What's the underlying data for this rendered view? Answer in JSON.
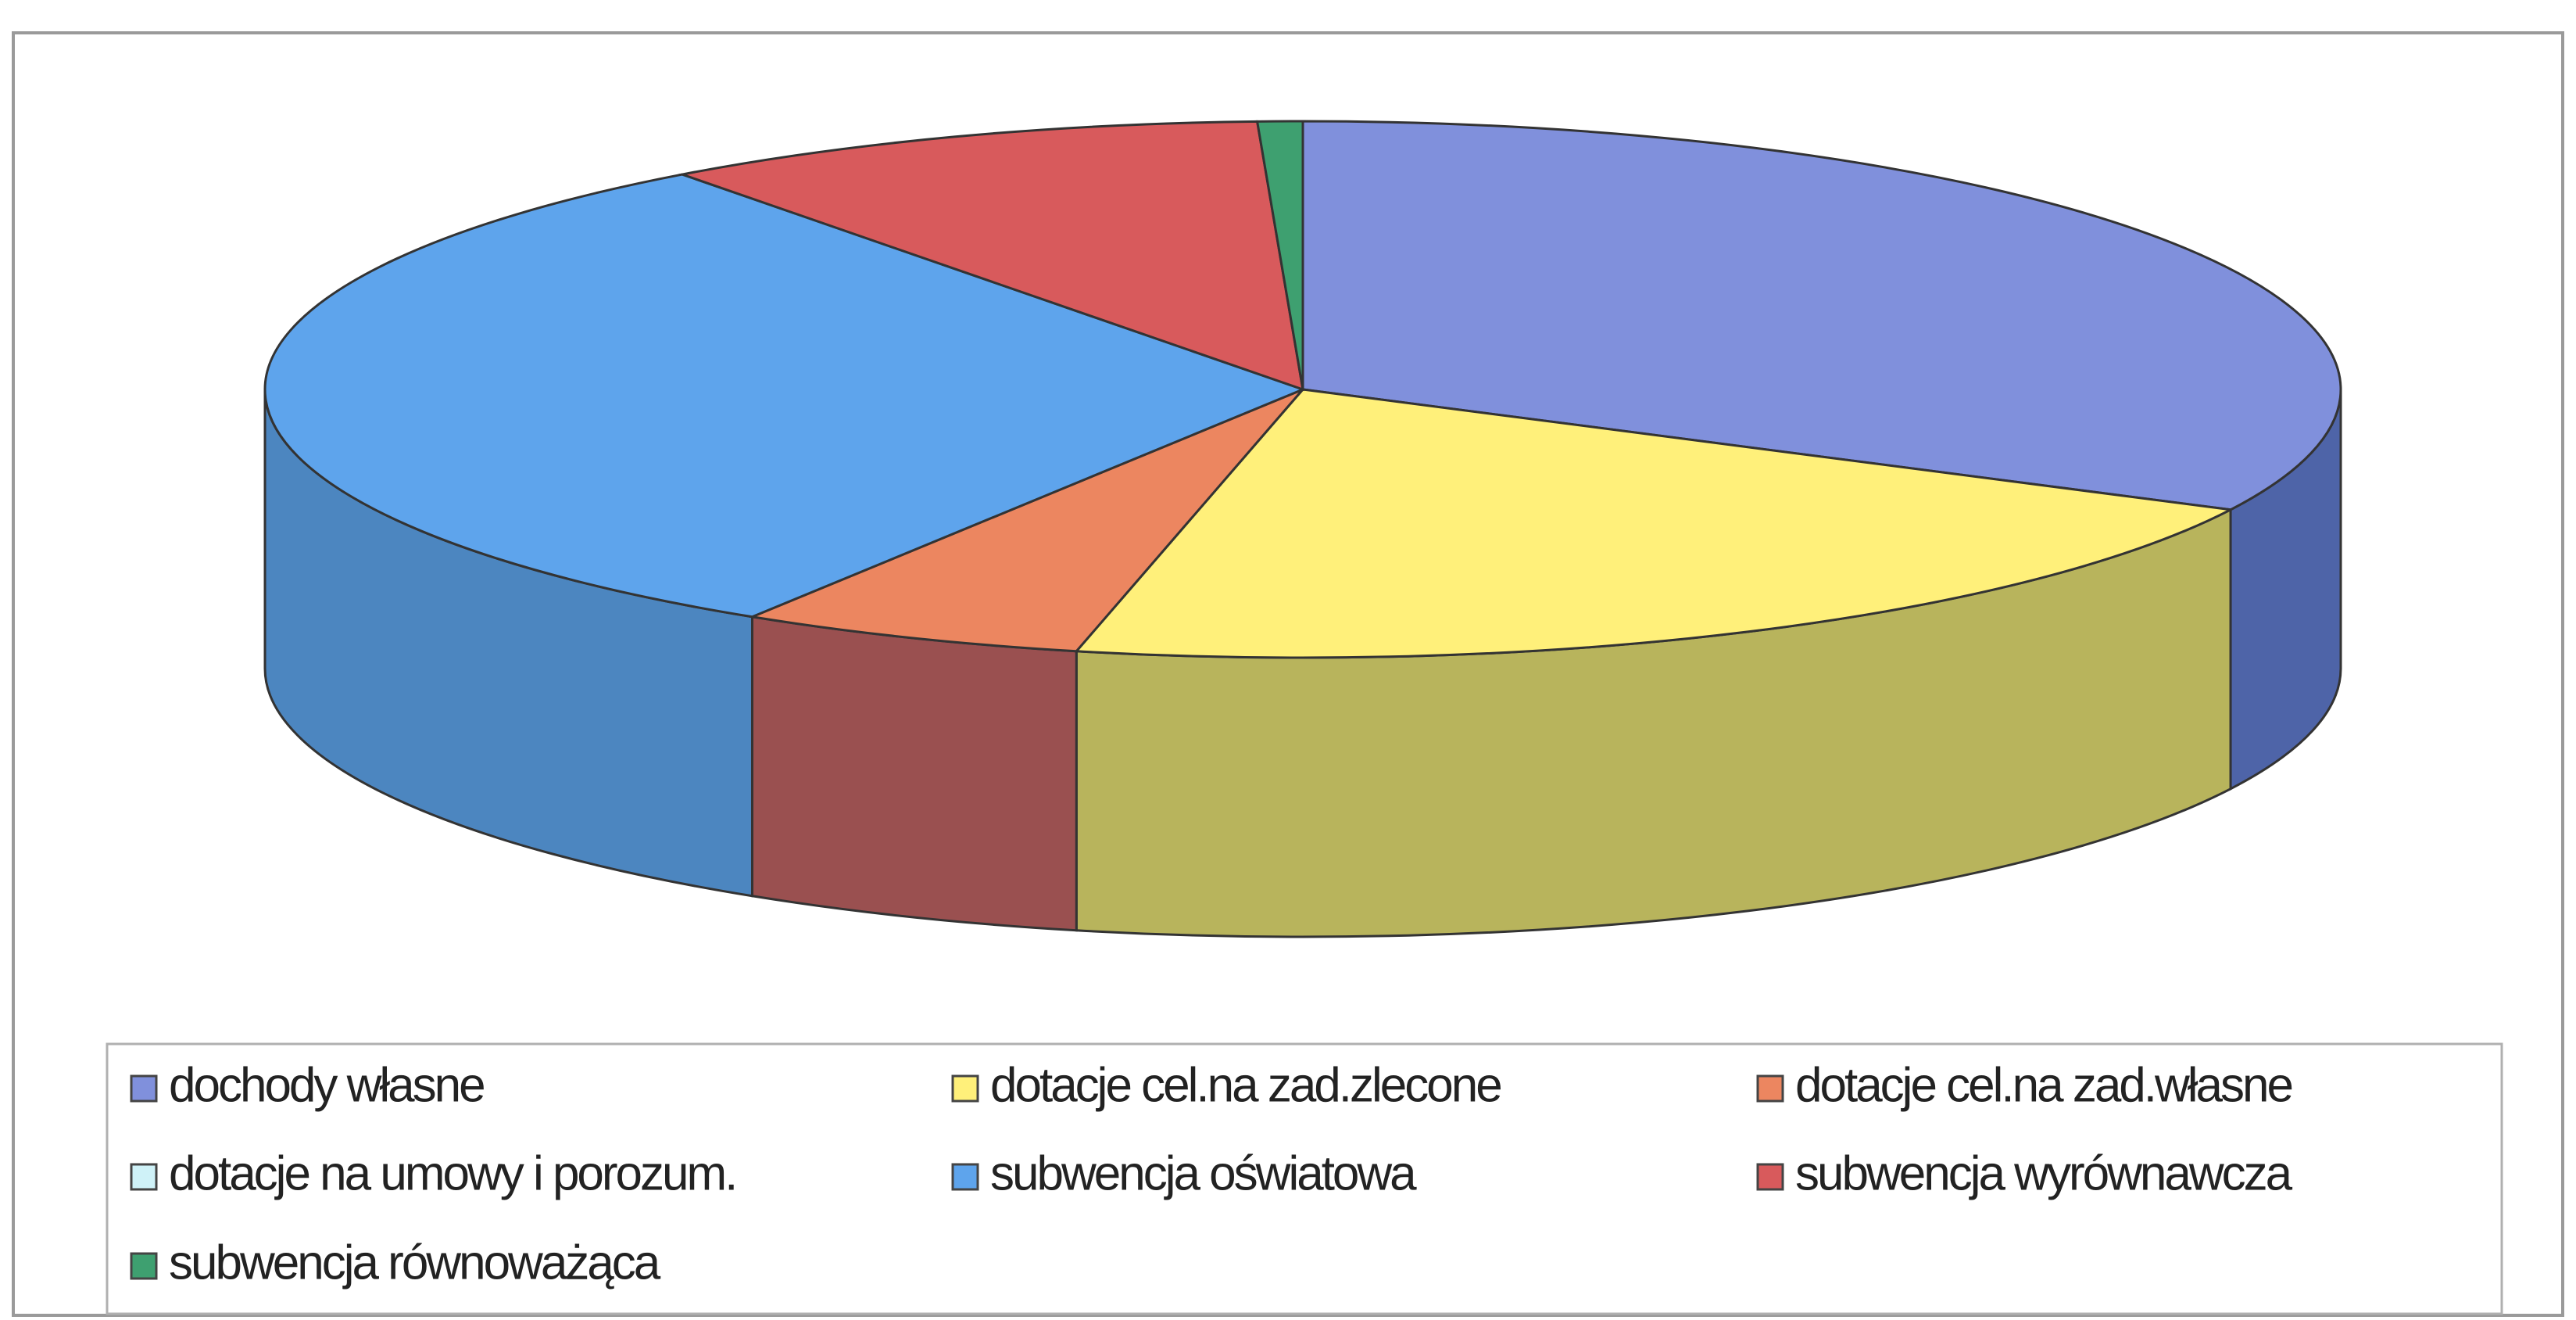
{
  "chart_data": {
    "type": "pie",
    "categories": [
      "dochody własne",
      "dotacje cel.na zad.zlecone",
      "dotacje cel.na zad.własne",
      "dotacje na umowy i porozum.",
      "subwencja oświatowa",
      "subwencja wyrównawcza",
      "subwencja równoważąca"
    ],
    "values": [
      32.4,
      21.1,
      5.4,
      0,
      30.9,
      9.5,
      0.7
    ],
    "colors": [
      "#8090dc",
      "#fff07a",
      "#ec8660",
      "#cff2f8",
      "#5ea4ec",
      "#d85a5c",
      "#3ea070"
    ],
    "side_colors": [
      "#4e64a8",
      "#b8b45c",
      "#9a5050",
      "#9cc0c8",
      "#4c86c0",
      "#9a4444",
      "#2e7a54"
    ],
    "legend": "bottom"
  }
}
